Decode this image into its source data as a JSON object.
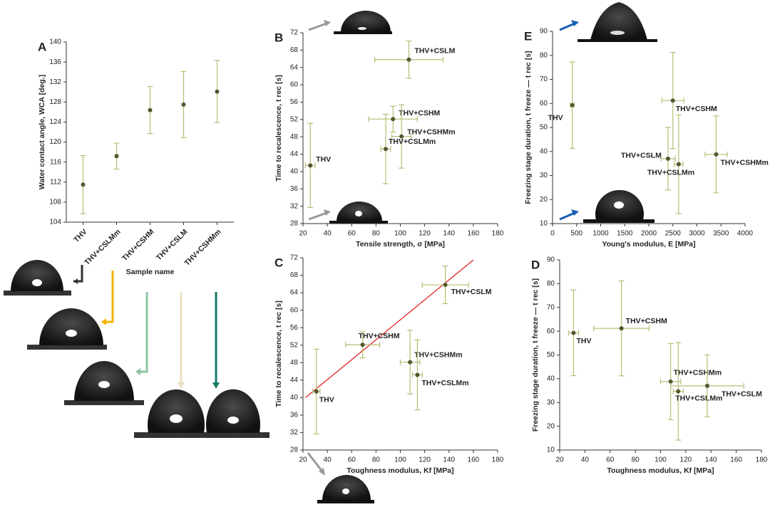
{
  "chart_data": [
    {
      "type": "errorbar",
      "panel": "A",
      "ylabel": "Water contact angle, WCA [deg.]",
      "xlabel": "Sample name",
      "categories": [
        "THV",
        "THV+CSLMm",
        "THV+CSHM",
        "THV+CSLM",
        "THV+CSHMm"
      ],
      "values": [
        111.5,
        117.2,
        126.4,
        127.5,
        130.1
      ],
      "errors": [
        5.8,
        2.6,
        4.7,
        6.6,
        6.2
      ],
      "ylim": [
        104,
        140
      ],
      "yticks": [
        104,
        108,
        112,
        116,
        120,
        124,
        128,
        132,
        136,
        140
      ],
      "color": "#55562f",
      "error_color": "#b9bc74"
    },
    {
      "type": "scatter",
      "panel": "B",
      "xlabel": "Tensile strength, σ [MPa]",
      "ylabel": "Time to recalescence, t rec [s]",
      "labels": [
        "THV",
        "THV+CSLM",
        "THV+CSHM",
        "THV+CSHMm",
        "THV+CSLMm"
      ],
      "x": [
        26,
        107,
        94,
        101,
        88
      ],
      "xerr": [
        4,
        28,
        20,
        8,
        4
      ],
      "y": [
        41.4,
        65.8,
        52.1,
        48.1,
        45.2
      ],
      "yerr": [
        9.7,
        4.3,
        3,
        7.3,
        8
      ],
      "xlim": [
        20,
        180
      ],
      "xticks": [
        20,
        40,
        60,
        80,
        100,
        120,
        140,
        160,
        180
      ],
      "ylim": [
        28,
        72
      ],
      "yticks": [
        28,
        32,
        36,
        40,
        44,
        48,
        52,
        56,
        60,
        64,
        68,
        72
      ],
      "color": "#55562f",
      "error_color": "#b9bc74"
    },
    {
      "type": "scatter",
      "panel": "C",
      "xlabel": "Toughness modulus, Kf [MPa]",
      "ylabel": "Time to recalescence, t rec [s]",
      "labels": [
        "THV",
        "THV+CSHM",
        "THV+CSHMm",
        "THV+CSLMm",
        "THV+CSLM"
      ],
      "x": [
        31,
        69,
        108,
        114,
        137
      ],
      "xerr": [
        3,
        14,
        8,
        4,
        19
      ],
      "y": [
        41.4,
        52.1,
        48.1,
        45.2,
        65.8
      ],
      "yerr": [
        9.7,
        3,
        7.3,
        8,
        4.3
      ],
      "fit_x": [
        22,
        160
      ],
      "fit_y": [
        40,
        71.5
      ],
      "fit_color": "#e02020",
      "xlim": [
        20,
        180
      ],
      "xticks": [
        20,
        40,
        60,
        80,
        100,
        120,
        140,
        160,
        180
      ],
      "ylim": [
        28,
        72
      ],
      "yticks": [
        28,
        32,
        36,
        40,
        44,
        48,
        52,
        56,
        60,
        64,
        68,
        72
      ],
      "color": "#55562f",
      "error_color": "#b9bc74"
    },
    {
      "type": "scatter",
      "panel": "D",
      "xlabel": "Toughness modulus, Kf [MPa]",
      "ylabel": "Freezing stage duration, t freeze — t rec [s]",
      "labels": [
        "THV",
        "THV+CSHM",
        "THV+CSHMm",
        "THV+CSLMm",
        "THV+CSLM"
      ],
      "x": [
        31,
        69,
        108,
        114,
        137
      ],
      "xerr": [
        4,
        22,
        8,
        4,
        29
      ],
      "y": [
        59.3,
        61.2,
        38.8,
        34.7,
        37
      ],
      "yerr": [
        18,
        20,
        16,
        20.5,
        13
      ],
      "xlim": [
        20,
        180
      ],
      "xticks": [
        20,
        40,
        60,
        80,
        100,
        120,
        140,
        160,
        180
      ],
      "ylim": [
        10,
        90
      ],
      "yticks": [
        10,
        20,
        30,
        40,
        50,
        60,
        70,
        80,
        90
      ],
      "color": "#55562f",
      "error_color": "#b9bc74"
    },
    {
      "type": "scatter",
      "panel": "E",
      "xlabel": "Young's modulus, E [MPa]",
      "ylabel": "Freezing stage duration, t freeze — t rec [s]",
      "labels": [
        "THV",
        "THV+CSHM",
        "THV+CSLM",
        "THV+CSLMm",
        "THV+CSHMm"
      ],
      "x": [
        410,
        2500,
        2400,
        2620,
        3400
      ],
      "xerr": [
        40,
        230,
        150,
        90,
        230
      ],
      "y": [
        59.3,
        61.2,
        37,
        34.7,
        38.8
      ],
      "yerr": [
        18,
        20,
        13,
        20.5,
        16
      ],
      "xlim": [
        0,
        4000
      ],
      "xticks": [
        0,
        500,
        1000,
        1500,
        2000,
        2500,
        3000,
        3500,
        4000
      ],
      "ylim": [
        10,
        90
      ],
      "yticks": [
        10,
        20,
        30,
        40,
        50,
        60,
        70,
        80,
        90
      ],
      "color": "#55562f",
      "error_color": "#b9bc74"
    }
  ]
}
